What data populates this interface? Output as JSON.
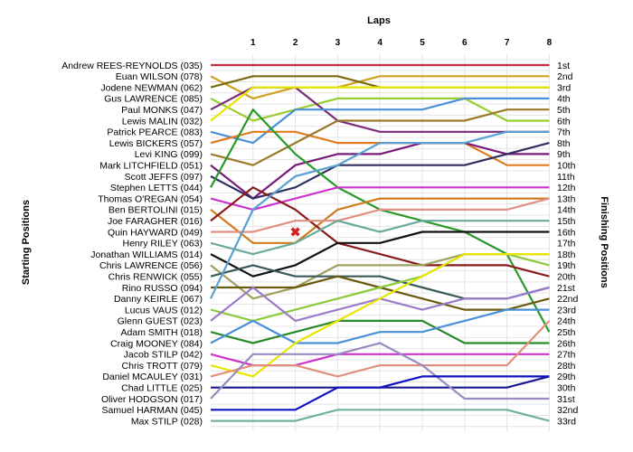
{
  "chart_data": {
    "type": "line",
    "title": "",
    "xlabel": "Laps",
    "ylabel_left": "Starting Positions",
    "ylabel_right": "Finishing Positions",
    "laps": [
      1,
      2,
      3,
      4,
      5,
      6,
      7,
      8
    ],
    "finish_labels": [
      "1st",
      "2nd",
      "3rd",
      "4th",
      "5th",
      "6th",
      "7th",
      "8th",
      "9th",
      "10th",
      "11th",
      "12th",
      "13th",
      "14th",
      "15th",
      "16th",
      "17th",
      "18th",
      "19th",
      "20th",
      "21st",
      "22nd",
      "23rd",
      "24th",
      "25th",
      "26th",
      "27th",
      "28th",
      "29th",
      "30th",
      "31st",
      "32nd",
      "33rd"
    ],
    "grid": true,
    "incident_marker": {
      "lap": 2,
      "position": 16,
      "symbol": "✖"
    },
    "series": [
      {
        "name": "Andrew REES-REYNOLDS (035)",
        "color": "#c0303a",
        "positions": [
          1,
          1,
          1,
          1,
          1,
          1,
          1,
          1,
          1
        ]
      },
      {
        "name": "Euan WILSON (078)",
        "color": "#d0a020",
        "positions": [
          2,
          4,
          3,
          3,
          2,
          2,
          2,
          2,
          2
        ]
      },
      {
        "name": "Jodene NEWMAN (062)",
        "color": "#7a6a10",
        "positions": [
          3,
          2,
          2,
          2,
          3,
          3,
          3,
          3,
          3
        ]
      },
      {
        "name": "Gus LAWRENCE (085)",
        "color": "#9acd32",
        "positions": [
          4,
          6,
          5,
          4,
          4,
          4,
          4,
          6,
          6
        ]
      },
      {
        "name": "Paul MONKS (047)",
        "color": "#7b2d7b",
        "positions": [
          5,
          3,
          3,
          6,
          7,
          7,
          7,
          7,
          7
        ]
      },
      {
        "name": "Lewis MALIN (032)",
        "color": "#e6e600",
        "positions": [
          6,
          3,
          3,
          3,
          3,
          3,
          3,
          3,
          3
        ]
      },
      {
        "name": "Patrick PEARCE (083)",
        "color": "#4a90d9",
        "positions": [
          7,
          8,
          5,
          5,
          5,
          5,
          4,
          4,
          4
        ]
      },
      {
        "name": "Lewis BICKERS (057)",
        "color": "#e07b20",
        "positions": [
          8,
          7,
          7,
          8,
          8,
          8,
          8,
          10,
          10
        ]
      },
      {
        "name": "Levi KING (099)",
        "color": "#9a7a2a",
        "positions": [
          9,
          10,
          8,
          6,
          6,
          6,
          6,
          5,
          5
        ]
      },
      {
        "name": "Mark LITCHFIELD (051)",
        "color": "#7a1a7a",
        "positions": [
          10,
          13,
          10,
          9,
          9,
          8,
          8,
          9,
          9
        ]
      },
      {
        "name": "Scott JEFFS (097)",
        "color": "#303060",
        "positions": [
          11,
          13,
          12,
          10,
          10,
          10,
          10,
          9,
          8
        ]
      },
      {
        "name": "Stephen LETTS (044)",
        "color": "#2a9a2a",
        "positions": [
          12,
          5,
          9,
          12,
          14,
          15,
          16,
          18,
          25
        ]
      },
      {
        "name": "Thomas O'REGAN (054)",
        "color": "#cc33cc",
        "positions": [
          13,
          14,
          13,
          12,
          12,
          12,
          12,
          12,
          12
        ]
      },
      {
        "name": "Ben BERTOLINI (015)",
        "color": "#d07a20",
        "positions": [
          14,
          17,
          17,
          14,
          13,
          13,
          13,
          13,
          13
        ]
      },
      {
        "name": "Joe FARAGHER (016)",
        "color": "#8b1a1a",
        "positions": [
          15,
          12,
          14,
          17,
          18,
          19,
          19,
          19,
          20
        ]
      },
      {
        "name": "Quin HAYWARD (049)",
        "color": "#e09080",
        "positions": [
          16,
          16,
          15,
          15,
          14,
          14,
          14,
          14,
          13
        ]
      },
      {
        "name": "Henry RILEY (063)",
        "color": "#6aaa9a",
        "positions": [
          17,
          18,
          17,
          15,
          16,
          15,
          15,
          15,
          15
        ]
      },
      {
        "name": "Jonathan WILLIAMS (014)",
        "color": "#101010",
        "positions": [
          18,
          20,
          19,
          17,
          17,
          16,
          16,
          16,
          16
        ]
      },
      {
        "name": "Chris LAWRENCE (056)",
        "color": "#a0a060",
        "positions": [
          19,
          22,
          21,
          19,
          19,
          19,
          18,
          18,
          18
        ]
      },
      {
        "name": "Chris RENWICK (055)",
        "color": "#3a5a5a",
        "positions": [
          20,
          19,
          20,
          20,
          20,
          21,
          22,
          22,
          21
        ]
      },
      {
        "name": "Rino RUSSO (094)",
        "color": "#6a5a10",
        "positions": [
          21,
          21,
          21,
          20,
          21,
          22,
          23,
          23,
          22
        ]
      },
      {
        "name": "Danny KEIRLE (067)",
        "color": "#5aa0d0",
        "positions": [
          22,
          14,
          11,
          10,
          8,
          8,
          8,
          7,
          7
        ]
      },
      {
        "name": "Lucus VAUS (012)",
        "color": "#8aca3a",
        "positions": [
          23,
          24,
          23,
          22,
          21,
          20,
          18,
          18,
          19
        ]
      },
      {
        "name": "Glenn GUEST (023)",
        "color": "#9a7aca",
        "positions": [
          24,
          21,
          24,
          23,
          22,
          23,
          22,
          22,
          21
        ]
      },
      {
        "name": "Adam SMITH (018)",
        "color": "#2a8a2a",
        "positions": [
          25,
          26,
          25,
          24,
          24,
          24,
          26,
          26,
          26
        ]
      },
      {
        "name": "Craig MOONEY (084)",
        "color": "#4a90d9",
        "positions": [
          26,
          24,
          26,
          26,
          25,
          25,
          24,
          23,
          23
        ]
      },
      {
        "name": "Jacob STILP (042)",
        "color": "#cc33cc",
        "positions": [
          27,
          28,
          28,
          27,
          27,
          27,
          27,
          27,
          27
        ]
      },
      {
        "name": "Chris TROTT (079)",
        "color": "#e6e600",
        "positions": [
          28,
          29,
          26,
          24,
          22,
          20,
          18,
          18,
          18
        ]
      },
      {
        "name": "Daniel MCAULEY (031)",
        "color": "#e0907a",
        "positions": [
          29,
          28,
          28,
          29,
          28,
          28,
          28,
          28,
          24
        ]
      },
      {
        "name": "Chad LITTLE (025)",
        "color": "#1a1a90",
        "positions": [
          30,
          30,
          30,
          30,
          30,
          30,
          30,
          30,
          29
        ]
      },
      {
        "name": "Oliver HODGSON (017)",
        "color": "#9a8ac0",
        "positions": [
          31,
          27,
          27,
          27,
          26,
          28,
          31,
          31,
          31
        ]
      },
      {
        "name": "Samuel HARMAN (045)",
        "color": "#1010c0",
        "positions": [
          32,
          32,
          32,
          30,
          30,
          29,
          29,
          29,
          29
        ]
      },
      {
        "name": "Max STILP (028)",
        "color": "#70b0a0",
        "positions": [
          33,
          33,
          33,
          32,
          32,
          32,
          32,
          32,
          33
        ]
      }
    ]
  }
}
